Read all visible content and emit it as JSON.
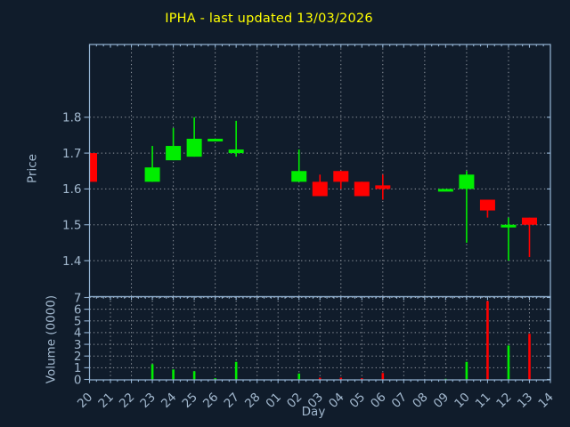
{
  "colors": {
    "background": "#101c2b",
    "frame": "#95b5d5",
    "text": "#a2b8ce",
    "grid": "#a8adb5",
    "title": "#ffff00",
    "up": "#00ee00",
    "down": "#ff0000"
  },
  "chart_data": {
    "type": "candlestick",
    "title": "IPHA - last updated 13/03/2026",
    "xlabel": "Day",
    "price_ylabel": "Price",
    "volume_ylabel": "Volume (0000)",
    "x_categories": [
      "20",
      "21",
      "22",
      "23",
      "24",
      "25",
      "26",
      "27",
      "28",
      "01",
      "02",
      "03",
      "04",
      "05",
      "06",
      "07",
      "08",
      "09",
      "10",
      "11",
      "12",
      "13",
      "14"
    ],
    "price_yticks": [
      1.8,
      1.7,
      1.6,
      1.5,
      1.4
    ],
    "price_ylim": [
      1.3,
      2.0
    ],
    "volume_yticks": [
      0,
      1,
      2,
      3,
      4,
      5,
      6,
      7
    ],
    "volume_ylim": [
      0,
      7
    ],
    "grid": "dotted",
    "legend": "none",
    "series": [
      {
        "day": "20",
        "open": 1.7,
        "high": 1.7,
        "low": 1.62,
        "close": 1.62,
        "volume": 0
      },
      {
        "day": "23",
        "open": 1.62,
        "high": 1.72,
        "low": 1.62,
        "close": 1.66,
        "volume": 1.3
      },
      {
        "day": "24",
        "open": 1.68,
        "high": 1.77,
        "low": 1.68,
        "close": 1.72,
        "volume": 0.85
      },
      {
        "day": "25",
        "open": 1.69,
        "high": 1.8,
        "low": 1.69,
        "close": 1.74,
        "volume": 0.7
      },
      {
        "day": "26",
        "open": 1.74,
        "high": 1.74,
        "low": 1.74,
        "close": 1.74,
        "volume": 0.1
      },
      {
        "day": "27",
        "open": 1.7,
        "high": 1.79,
        "low": 1.69,
        "close": 1.71,
        "volume": 1.5
      },
      {
        "day": "02",
        "open": 1.62,
        "high": 1.71,
        "low": 1.62,
        "close": 1.65,
        "volume": 0.5
      },
      {
        "day": "03",
        "open": 1.62,
        "high": 1.64,
        "low": 1.58,
        "close": 1.58,
        "volume": 0.15
      },
      {
        "day": "04",
        "open": 1.65,
        "high": 1.65,
        "low": 1.6,
        "close": 1.62,
        "volume": 0.15
      },
      {
        "day": "05",
        "open": 1.62,
        "high": 1.62,
        "low": 1.58,
        "close": 1.58,
        "volume": 0.1
      },
      {
        "day": "06",
        "open": 1.61,
        "high": 1.64,
        "low": 1.57,
        "close": 1.6,
        "volume": 0.55
      },
      {
        "day": "09",
        "open": 1.6,
        "high": 1.6,
        "low": 1.6,
        "close": 1.6,
        "volume": 0.05
      },
      {
        "day": "10",
        "open": 1.6,
        "high": 1.65,
        "low": 1.45,
        "close": 1.64,
        "volume": 1.5
      },
      {
        "day": "11",
        "open": 1.57,
        "high": 1.57,
        "low": 1.52,
        "close": 1.54,
        "volume": 6.7
      },
      {
        "day": "12",
        "open": 1.5,
        "high": 1.52,
        "low": 1.4,
        "close": 1.5,
        "volume": 2.9
      },
      {
        "day": "13",
        "open": 1.52,
        "high": 1.52,
        "low": 1.41,
        "close": 1.5,
        "volume": 3.9
      }
    ]
  }
}
